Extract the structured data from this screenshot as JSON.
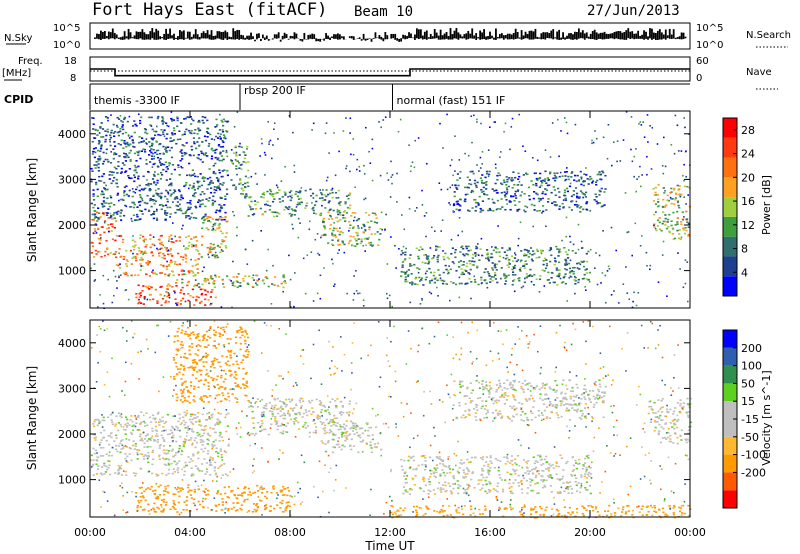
{
  "header": {
    "station": "Fort Hays East (fitACF)",
    "beam": "Beam 10",
    "date": "27/Jun/2013"
  },
  "top_panels": {
    "nsky_label": "N.Sky",
    "nsky_ticks": [
      "10^5",
      "10^0"
    ],
    "nsearch_label": "N.Search",
    "nsearch_ticks": [
      "10^5",
      "10^0"
    ],
    "freq_label_1": "Freq.",
    "freq_label_2": "[MHz]",
    "freq_ticks": [
      "18",
      "8"
    ],
    "nave_label": "Nave",
    "nave_ticks": [
      "60",
      "0"
    ],
    "cpid_label": "CPID",
    "cpid_segments": [
      {
        "label": "themis -3300 IF",
        "start_hour": 0,
        "end_hour": 6
      },
      {
        "label": "rbsp 200 IF",
        "start_hour": 6,
        "end_hour": 12.1
      },
      {
        "label": "normal (fast) 151 IF",
        "start_hour": 12.1,
        "end_hour": 24
      }
    ],
    "freq_steps": [
      {
        "start_hour": 0,
        "end_hour": 1.0,
        "mhz": 13.0
      },
      {
        "start_hour": 1.0,
        "end_hour": 12.8,
        "mhz": 10.2
      },
      {
        "start_hour": 12.8,
        "end_hour": 24,
        "mhz": 13.0
      }
    ]
  },
  "colors": {
    "power_bar": [
      "#0000ff",
      "#1f3f8f",
      "#2f6f6f",
      "#3f9f3f",
      "#9fcf3f",
      "#ffa020",
      "#ff7010",
      "#ff3a10",
      "#ff0000"
    ],
    "velocity_bar": [
      "#ff0000",
      "#ff5a00",
      "#ff9a00",
      "#ffb830",
      "#bfbfbf",
      "#bfbfbf",
      "#5fd020",
      "#2f8f4f",
      "#2f5faf",
      "#0000ff"
    ]
  },
  "chart_data": [
    {
      "type": "heatmap",
      "title": "Power",
      "xlabel": "Time UT",
      "ylabel": "Slant Range [km]",
      "x_ticks": [
        "00:00",
        "04:00",
        "08:00",
        "12:00",
        "16:00",
        "20:00",
        "00:00"
      ],
      "xlim": [
        0,
        24
      ],
      "ylim": [
        180,
        4500
      ],
      "y_ticks": [
        "1000",
        "2000",
        "3000",
        "4000"
      ],
      "colorbar_label": "Power [dB]",
      "colorbar_ticks": [
        "4",
        "8",
        "12",
        "16",
        "20",
        "24",
        "28"
      ],
      "colorbar_range": [
        0,
        30
      ],
      "echo_regions": [
        {
          "t0": 0.0,
          "t1": 1.0,
          "r0": 1300,
          "r1": 2300,
          "dB": 22
        },
        {
          "t0": 1.0,
          "t1": 4.4,
          "r0": 900,
          "r1": 1800,
          "dB": 20
        },
        {
          "t0": 4.4,
          "t1": 5.5,
          "r0": 1300,
          "r1": 2200,
          "dB": 17
        },
        {
          "t0": 0.0,
          "t1": 5.5,
          "r0": 2100,
          "r1": 4400,
          "dB": 7
        },
        {
          "t0": 5.6,
          "t1": 6.3,
          "r0": 2600,
          "r1": 3800,
          "dB": 10
        },
        {
          "t0": 1.8,
          "t1": 5.0,
          "r0": 250,
          "r1": 700,
          "dB": 24
        },
        {
          "t0": 3.0,
          "t1": 7.8,
          "r0": 650,
          "r1": 950,
          "dB": 15
        },
        {
          "t0": 6.3,
          "t1": 10.4,
          "r0": 2200,
          "r1": 2800,
          "dB": 11
        },
        {
          "t0": 9.2,
          "t1": 11.6,
          "r0": 1550,
          "r1": 2300,
          "dB": 14
        },
        {
          "t0": 12.4,
          "t1": 20.0,
          "r0": 700,
          "r1": 1550,
          "dB": 10
        },
        {
          "t0": 14.5,
          "t1": 20.6,
          "r0": 2300,
          "r1": 3200,
          "dB": 7
        },
        {
          "t0": 22.5,
          "t1": 24.0,
          "r0": 1700,
          "r1": 2900,
          "dB": 15
        }
      ]
    },
    {
      "type": "heatmap",
      "title": "Velocity",
      "xlabel": "Time UT",
      "ylabel": "Slant Range [km]",
      "x_ticks": [
        "00:00",
        "04:00",
        "08:00",
        "12:00",
        "16:00",
        "20:00",
        "00:00"
      ],
      "xlim": [
        0,
        24
      ],
      "ylim": [
        180,
        4500
      ],
      "y_ticks": [
        "1000",
        "2000",
        "3000",
        "4000"
      ],
      "colorbar_label": "Velocity [m s^-1]",
      "colorbar_ticks": [
        "200",
        "100",
        "50",
        "15",
        "-15",
        "-50",
        "-100",
        "-200"
      ],
      "echo_regions": [
        {
          "t0": 0.0,
          "t1": 5.5,
          "r0": 1100,
          "r1": 2500,
          "v": 0
        },
        {
          "t0": 3.3,
          "t1": 6.3,
          "r0": 2700,
          "r1": 4400,
          "v": -70
        },
        {
          "t0": 1.8,
          "t1": 8.0,
          "r0": 300,
          "r1": 900,
          "v": -70
        },
        {
          "t0": 6.3,
          "t1": 10.4,
          "r0": 2000,
          "r1": 2800,
          "v": 0
        },
        {
          "t0": 9.2,
          "t1": 11.6,
          "r0": 1600,
          "r1": 2300,
          "v": 0
        },
        {
          "t0": 12.4,
          "t1": 20.0,
          "r0": 700,
          "r1": 1550,
          "v": 0
        },
        {
          "t0": 12.0,
          "t1": 24.0,
          "r0": 180,
          "r1": 450,
          "v": -60
        },
        {
          "t0": 14.5,
          "t1": 20.6,
          "r0": 2300,
          "r1": 3200,
          "v": 0
        },
        {
          "t0": 22.3,
          "t1": 24.0,
          "r0": 1800,
          "r1": 2800,
          "v": 0
        }
      ]
    }
  ]
}
